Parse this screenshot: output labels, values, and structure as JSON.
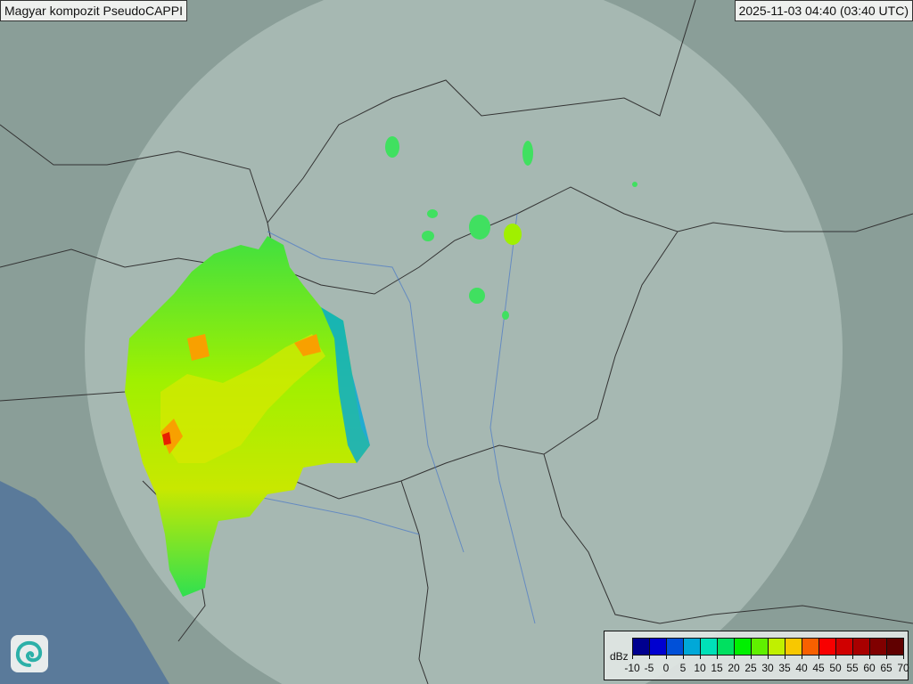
{
  "header": {
    "title": "Magyar kompozit  PseudoCAPPI",
    "timestamp": "2025-11-03 04:40 (03:40 UTC)"
  },
  "map": {
    "type": "weather radar composite",
    "logo_icon": "swirl-logo-icon",
    "colors": {
      "terrain": "#7f9590",
      "radar_range": "#b9c9c4",
      "water": "#5a7a9a",
      "border": "#333333"
    }
  },
  "legend": {
    "unit": "dBz",
    "ticks": [
      "-10",
      "-5",
      "0",
      "5",
      "10",
      "15",
      "20",
      "25",
      "30",
      "35",
      "40",
      "45",
      "50",
      "55",
      "60",
      "65",
      "70"
    ],
    "colors": [
      "#00008f",
      "#0000d0",
      "#0050d8",
      "#00a8d8",
      "#00e0b8",
      "#00e060",
      "#00f000",
      "#60f000",
      "#c0f000",
      "#f8c800",
      "#f86000",
      "#f80000",
      "#d00000",
      "#a80000",
      "#800000",
      "#600000"
    ]
  }
}
